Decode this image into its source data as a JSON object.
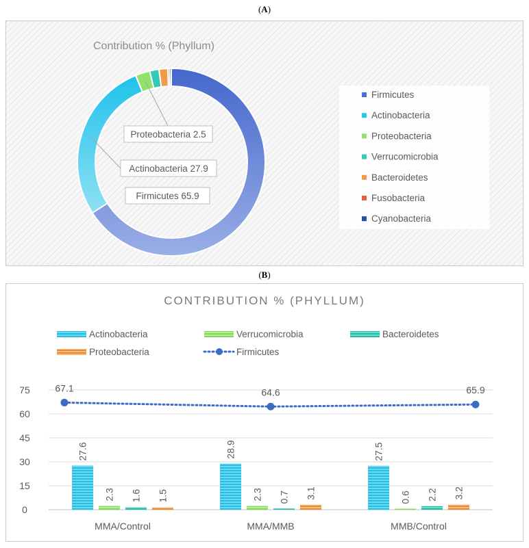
{
  "panel_a": {
    "label": "A"
  },
  "panel_b": {
    "label": "B"
  },
  "colors": {
    "firmicutes": "#4a6fd0",
    "firmicutes_light": "#93a9e4",
    "actinobacteria": "#29c6ec",
    "actinobacteria_light": "#7fdcf2",
    "proteobacteria_a": "#8fe26a",
    "verrucomicrobia_a": "#33cbb6",
    "bacteroidetes_a": "#f29a4a",
    "fusobacteria": "#e5603b",
    "cyanobacteria": "#2a4ea3",
    "verrucomicrobia_b": "#8fe26a",
    "bacteroidetes_b": "#33cbb6",
    "proteobacteria_b": "#f29a4a",
    "firmicutes_line": "#3d6cc4"
  },
  "chart_data": [
    {
      "type": "pie",
      "title": "Contribution % (Phyllum)",
      "donut": true,
      "slices": [
        {
          "name": "Firmicutes",
          "value": 65.9,
          "label": "Firmicutes 65.9"
        },
        {
          "name": "Actinobacteria",
          "value": 27.9,
          "label": "Actinobacteria 27.9"
        },
        {
          "name": "Proteobacteria",
          "value": 2.5,
          "label": "Proteobacteria 2.5"
        },
        {
          "name": "Verrucomicrobia",
          "value": 1.6,
          "label": ""
        },
        {
          "name": "Bacteroidetes",
          "value": 1.5,
          "label": ""
        },
        {
          "name": "Fusobacteria",
          "value": 0.3,
          "label": ""
        },
        {
          "name": "Cyanobacteria",
          "value": 0.3,
          "label": ""
        }
      ],
      "legend": [
        "Firmicutes",
        "Actinobacteria",
        "Proteobacteria",
        "Verrucomicrobia",
        "Bacteroidetes",
        "Fusobacteria",
        "Cyanobacteria"
      ],
      "legend_position": "right"
    },
    {
      "type": "bar",
      "title": "CONTRIBUTION % (PHYLLUM)",
      "categories": [
        "MMA/Control",
        "MMA/MMB",
        "MMB/Control"
      ],
      "series": [
        {
          "name": "Actinobacteria",
          "type": "bar",
          "values": [
            27.6,
            28.9,
            27.5
          ]
        },
        {
          "name": "Verrucomicrobia",
          "type": "bar",
          "values": [
            2.3,
            2.3,
            0.6
          ]
        },
        {
          "name": "Bacteroidetes",
          "type": "bar",
          "values": [
            1.6,
            0.7,
            2.2
          ]
        },
        {
          "name": "Proteobacteria",
          "type": "bar",
          "values": [
            1.5,
            3.1,
            3.2
          ]
        },
        {
          "name": "Firmicutes",
          "type": "line",
          "values": [
            67.1,
            64.6,
            65.9
          ]
        }
      ],
      "data_labels": [
        [
          "27.6",
          "2.3",
          "1.6",
          "1.5"
        ],
        [
          "28.9",
          "2.3",
          "0.7",
          "3.1"
        ],
        [
          "27.5",
          "0.6",
          "2.2",
          "3.2"
        ]
      ],
      "line_labels": [
        "67.1",
        "64.6",
        "65.9"
      ],
      "yticks": [
        "0",
        "15",
        "30",
        "45",
        "60",
        "75"
      ],
      "ylim": [
        0,
        75
      ],
      "grid": true,
      "legend_position": "top"
    }
  ]
}
